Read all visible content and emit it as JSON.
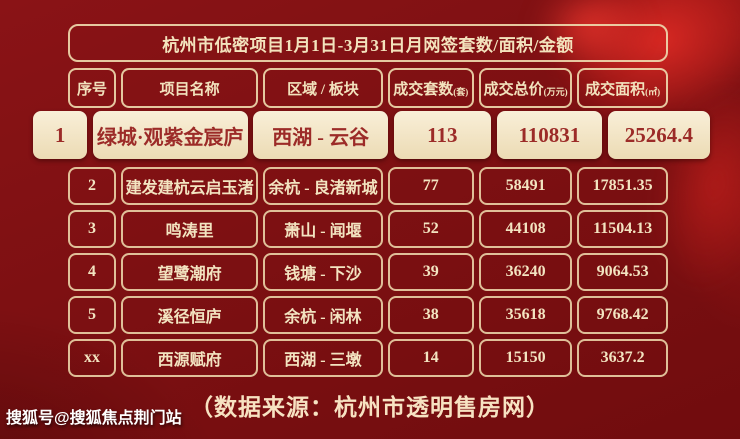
{
  "title": "杭州市低密项目1月1日-3月31日月网签套数/面积/金额",
  "header": [
    {
      "label": "序号",
      "unit": ""
    },
    {
      "label": "项目名称",
      "unit": ""
    },
    {
      "label": "区域 / 板块",
      "unit": ""
    },
    {
      "label": "成交套数",
      "unit": "(套)"
    },
    {
      "label": "成交总价",
      "unit": "(万元)"
    },
    {
      "label": "成交面积",
      "unit": "(㎡)"
    }
  ],
  "highlight": {
    "rank": "1",
    "project": "绿城·观紫金宸庐",
    "area_name": "西湖 - 云谷",
    "deals": "113",
    "total_price": "110831",
    "area": "25264.4"
  },
  "rows": [
    {
      "rank": "2",
      "project": "建发建杭云启玉渚",
      "area_name": "余杭 - 良渚新城",
      "deals": "77",
      "total_price": "58491",
      "area": "17851.35"
    },
    {
      "rank": "3",
      "project": "鸣涛里",
      "area_name": "萧山 - 闻堰",
      "deals": "52",
      "total_price": "44108",
      "area": "11504.13"
    },
    {
      "rank": "4",
      "project": "望鹭潮府",
      "area_name": "钱塘 - 下沙",
      "deals": "39",
      "total_price": "36240",
      "area": "9064.53"
    },
    {
      "rank": "5",
      "project": "溪径恒庐",
      "area_name": "余杭 - 闲林",
      "deals": "38",
      "total_price": "35618",
      "area": "9768.42"
    },
    {
      "rank": "xx",
      "project": "西源赋府",
      "area_name": "西湖 - 三墩",
      "deals": "14",
      "total_price": "15150",
      "area": "3637.2"
    }
  ],
  "footer": {
    "source": "（数据来源：杭州市透明售房网）"
  },
  "watermark": {
    "text": "搜狐号@搜狐焦点荆门站"
  },
  "colors": {
    "background": "#7c0f11",
    "splash_accent": "#d92a26",
    "cell_border": "#eed8ac",
    "cell_text": "#f3e4c1",
    "highlight_bg": "#f6ead0",
    "highlight_text": "#9c2b28",
    "source_text": "#f7e2c2",
    "watermark_text": "#ffffff"
  },
  "chart_data": {
    "type": "table",
    "title": "杭州市低密项目1月1日-3月31日月网签套数/面积/金额",
    "columns": [
      "序号",
      "项目名称",
      "区域 / 板块",
      "成交套数(套)",
      "成交总价(万元)",
      "成交面积(㎡)"
    ],
    "rows": [
      [
        "1",
        "绿城·观紫金宸庐",
        "西湖 - 云谷",
        113,
        110831,
        25264.4
      ],
      [
        "2",
        "建发建杭云启玉渚",
        "余杭 - 良渚新城",
        77,
        58491,
        17851.35
      ],
      [
        "3",
        "鸣涛里",
        "萧山 - 闻堰",
        52,
        44108,
        11504.13
      ],
      [
        "4",
        "望鹭潮府",
        "钱塘 - 下沙",
        39,
        36240,
        9064.53
      ],
      [
        "5",
        "溪径恒庐",
        "余杭 - 闲林",
        38,
        35618,
        9768.42
      ],
      [
        "xx",
        "西源赋府",
        "西湖 - 三墩",
        14,
        15150,
        3637.2
      ]
    ],
    "highlighted_row_index": 0,
    "source": "（数据来源：杭州市透明售房网）"
  }
}
